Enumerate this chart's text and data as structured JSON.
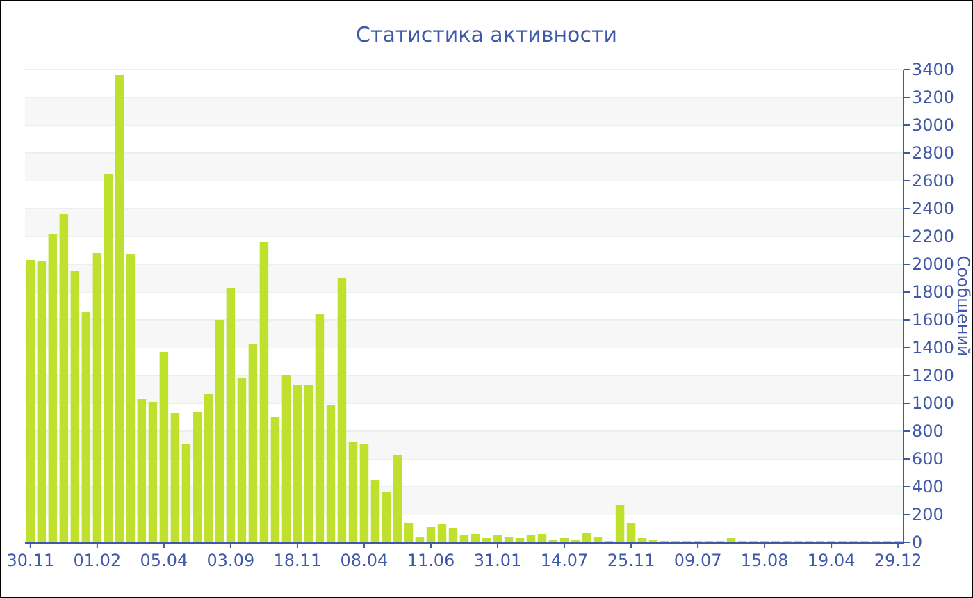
{
  "chart_data": {
    "type": "bar",
    "title": "Статистика активности",
    "ylabel": "Сообщений",
    "categories": [
      "30.11",
      null,
      null,
      null,
      null,
      null,
      "01.02",
      null,
      null,
      null,
      null,
      null,
      "05.04",
      null,
      null,
      null,
      null,
      null,
      "03.09",
      null,
      null,
      null,
      null,
      null,
      "18.11",
      null,
      null,
      null,
      null,
      null,
      "08.04",
      null,
      null,
      null,
      null,
      null,
      "11.06",
      null,
      null,
      null,
      null,
      null,
      "31.01",
      null,
      null,
      null,
      null,
      null,
      "14.07",
      null,
      null,
      null,
      null,
      null,
      "25.11",
      null,
      null,
      null,
      null,
      null,
      "09.07",
      null,
      null,
      null,
      null,
      null,
      "15.08",
      null,
      null,
      null,
      null,
      null,
      "19.04",
      null,
      null,
      null,
      null,
      null,
      "29.12"
    ],
    "values": [
      2030,
      2020,
      2220,
      2360,
      1950,
      1660,
      2080,
      2650,
      3360,
      2070,
      1030,
      1010,
      1370,
      930,
      710,
      940,
      1070,
      1600,
      1830,
      1180,
      1430,
      2160,
      900,
      1200,
      1130,
      1130,
      1640,
      990,
      1900,
      720,
      710,
      450,
      360,
      630,
      140,
      40,
      110,
      130,
      100,
      50,
      60,
      30,
      50,
      40,
      30,
      50,
      60,
      20,
      30,
      20,
      70,
      40,
      10,
      270,
      140,
      30,
      20,
      10,
      10,
      10,
      10,
      10,
      10,
      30,
      10,
      10,
      10,
      10,
      10,
      10,
      10,
      10,
      10,
      10,
      10,
      10,
      10,
      10,
      10
    ],
    "color": "#bfe12e",
    "ylim": [
      0,
      3400
    ],
    "yticks": [
      0,
      200,
      400,
      600,
      800,
      1000,
      1200,
      1400,
      1600,
      1800,
      2000,
      2200,
      2400,
      2600,
      2800,
      3000,
      3200,
      3400
    ],
    "grid": "y"
  }
}
